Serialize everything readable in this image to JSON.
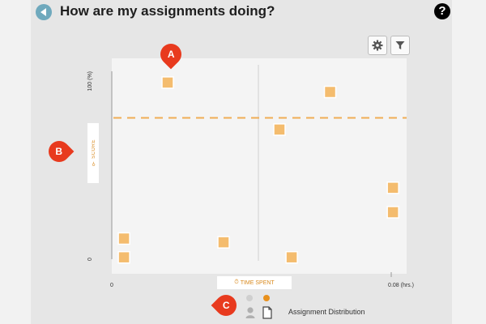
{
  "header": {
    "title": "How are my assignments doing?",
    "help_label": "?"
  },
  "axes": {
    "y_label": "SCORE",
    "x_label": "TIME SPENT",
    "y_top": "100 (%)",
    "y_bottom": "0",
    "x_left": "0",
    "x_right": "0.08 (hrs.)"
  },
  "markers": {
    "a": "A",
    "b": "B",
    "c": "C"
  },
  "footer": {
    "view_label": "Assignment Distribution"
  },
  "colors": {
    "accent": "#e8901c",
    "point": "#f4bc6e",
    "marker": "#e83a1e",
    "back": "#6fa9bd"
  },
  "chart_data": {
    "type": "scatter",
    "xlim": [
      0,
      0.08
    ],
    "ylim": [
      0,
      100
    ],
    "threshold_y": 75,
    "divider_x": 0.042,
    "points": [
      {
        "x": 0.016,
        "y": 94
      },
      {
        "x": 0.0625,
        "y": 89
      },
      {
        "x": 0.048,
        "y": 69
      },
      {
        "x": 0.0805,
        "y": 38
      },
      {
        "x": 0.0805,
        "y": 25
      },
      {
        "x": 0.0035,
        "y": 11
      },
      {
        "x": 0.0035,
        "y": 1
      },
      {
        "x": 0.032,
        "y": 9
      },
      {
        "x": 0.0515,
        "y": 1
      }
    ]
  }
}
